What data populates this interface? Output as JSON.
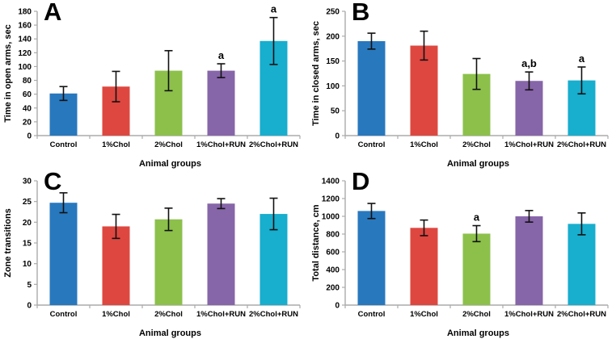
{
  "figure": {
    "background": "#ffffff"
  },
  "style": {
    "bar_colors": [
      "#2878BE",
      "#DE4740",
      "#8CC04B",
      "#8765A9",
      "#18AECE"
    ],
    "error_bar_color": "#111111",
    "axis_color": "#ABABAB",
    "text_color": "#000000"
  },
  "chart_data": [
    {
      "type": "bar",
      "panel_label": "A",
      "ylabel": "Time in open arms, sec",
      "xlabel": "Animal groups",
      "categories": [
        "Control",
        "1%Chol",
        "2%Chol",
        "1%Chol+RUN",
        "2%Chol+RUN"
      ],
      "values": [
        61,
        71,
        94,
        94,
        137
      ],
      "errors": [
        10,
        22,
        29,
        10,
        34
      ],
      "annotations": [
        {
          "index": 3,
          "text": "a"
        },
        {
          "index": 4,
          "text": "a"
        }
      ],
      "ylim": [
        0,
        180
      ],
      "ytick_step": 20,
      "grid": false,
      "legend": "none"
    },
    {
      "type": "bar",
      "panel_label": "B",
      "ylabel": "Time in closed arms, sec",
      "xlabel": "Animal groups",
      "categories": [
        "Control",
        "1%Chol",
        "2%Chol",
        "1%Chol+RUN",
        "2%Chol+RUN"
      ],
      "values": [
        190,
        181,
        124,
        110,
        111
      ],
      "errors": [
        16,
        29,
        31,
        18,
        27
      ],
      "annotations": [
        {
          "index": 3,
          "text": "a,b"
        },
        {
          "index": 4,
          "text": "a"
        }
      ],
      "ylim": [
        0,
        250
      ],
      "ytick_step": 50,
      "grid": false,
      "legend": "none"
    },
    {
      "type": "bar",
      "panel_label": "C",
      "ylabel": "Zone transitions",
      "xlabel": "Animal groups",
      "categories": [
        "Control",
        "1%Chol",
        "2%Chol",
        "1%Chol+RUN",
        "2%Chol+RUN"
      ],
      "values": [
        24.7,
        19,
        20.7,
        24.5,
        22
      ],
      "errors": [
        2.4,
        2.9,
        2.7,
        1.2,
        3.8
      ],
      "annotations": [],
      "ylim": [
        0,
        30
      ],
      "ytick_step": 5,
      "grid": false,
      "legend": "none"
    },
    {
      "type": "bar",
      "panel_label": "D",
      "ylabel": "Total distance, cm",
      "xlabel": "Animal groups",
      "categories": [
        "Control",
        "1%Chol",
        "2%Chol",
        "1%Chol+RUN",
        "2%Chol+RUN"
      ],
      "values": [
        1060,
        870,
        805,
        1000,
        915
      ],
      "errors": [
        85,
        88,
        90,
        65,
        123
      ],
      "annotations": [
        {
          "index": 2,
          "text": "a"
        }
      ],
      "ylim": [
        0,
        1400
      ],
      "ytick_step": 200,
      "grid": false,
      "legend": "none"
    }
  ]
}
